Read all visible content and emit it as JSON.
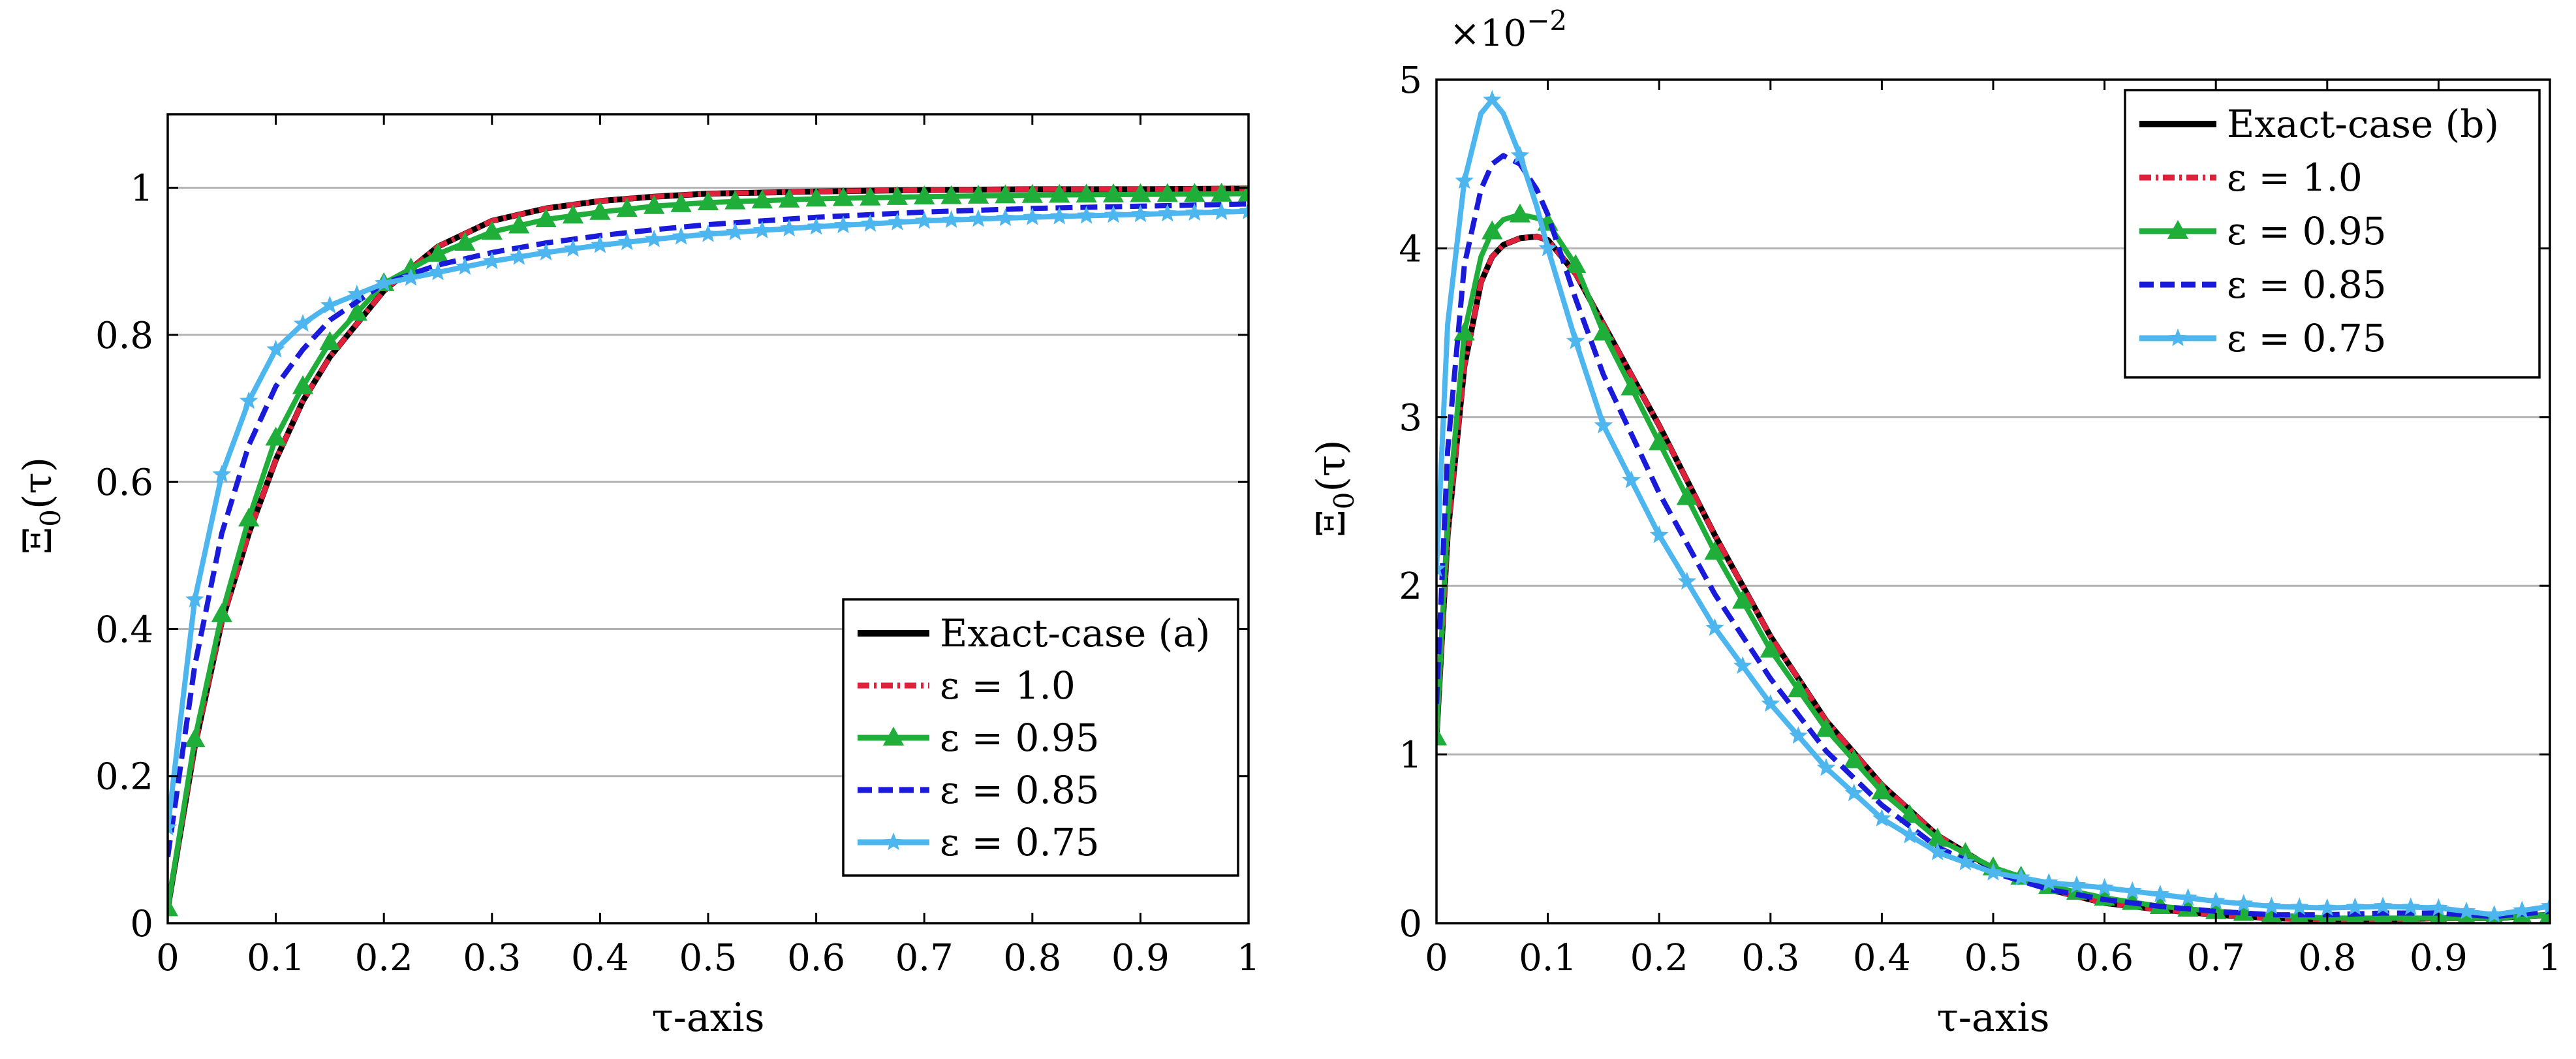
{
  "chart_data": [
    {
      "id": "a",
      "type": "line",
      "xlabel": "τ-axis",
      "ylabel": "Ξ0(τ)",
      "ylabel_main": "Ξ",
      "ylabel_sub": "0",
      "ylabel_tail": "(τ)",
      "xlim": [
        0,
        1
      ],
      "ylim": [
        0,
        1.1
      ],
      "xticks": [
        0,
        0.1,
        0.2,
        0.3,
        0.4,
        0.5,
        0.6,
        0.7,
        0.8,
        0.9,
        1
      ],
      "xtick_labels": [
        "0",
        "0.1",
        "0.2",
        "0.3",
        "0.4",
        "0.5",
        "0.6",
        "0.7",
        "0.8",
        "0.9",
        "1"
      ],
      "yticks": [
        0,
        0.2,
        0.4,
        0.6,
        0.8,
        1
      ],
      "ytick_labels": [
        "0",
        "0.2",
        "0.4",
        "0.6",
        "0.8",
        "1"
      ],
      "grid": "horizontal",
      "legend_position": "bottom-right",
      "x": [
        0,
        0.025,
        0.05,
        0.075,
        0.1,
        0.125,
        0.15,
        0.2,
        0.25,
        0.3,
        0.35,
        0.4,
        0.45,
        0.5,
        0.6,
        0.7,
        0.8,
        0.9,
        1.0
      ],
      "series": [
        {
          "name": "Exact-case (a)",
          "color": "#000000",
          "style": "solid",
          "marker": "none",
          "values": [
            0.02,
            0.24,
            0.41,
            0.53,
            0.63,
            0.71,
            0.77,
            0.86,
            0.92,
            0.955,
            0.972,
            0.982,
            0.988,
            0.992,
            0.995,
            0.997,
            0.998,
            0.998,
            0.999
          ]
        },
        {
          "name": "ε = 1.0",
          "color": "#e0213b",
          "style": "dashdot",
          "marker": "none",
          "values": [
            0.02,
            0.24,
            0.41,
            0.53,
            0.63,
            0.71,
            0.77,
            0.86,
            0.92,
            0.955,
            0.972,
            0.982,
            0.988,
            0.992,
            0.995,
            0.997,
            0.998,
            0.998,
            0.999
          ]
        },
        {
          "name": "ε = 0.95",
          "color": "#1fae3a",
          "style": "solid",
          "marker": "triangle",
          "values": [
            0.02,
            0.25,
            0.42,
            0.55,
            0.66,
            0.73,
            0.79,
            0.87,
            0.91,
            0.94,
            0.957,
            0.967,
            0.975,
            0.98,
            0.985,
            0.988,
            0.99,
            0.991,
            0.992
          ]
        },
        {
          "name": "ε = 0.85",
          "color": "#1a1adb",
          "style": "dashed",
          "marker": "none",
          "values": [
            0.09,
            0.35,
            0.53,
            0.65,
            0.73,
            0.78,
            0.82,
            0.87,
            0.895,
            0.912,
            0.925,
            0.935,
            0.943,
            0.95,
            0.96,
            0.967,
            0.972,
            0.975,
            0.978
          ]
        },
        {
          "name": "ε = 0.75",
          "color": "#4db6ee",
          "style": "solid",
          "marker": "star",
          "values": [
            0.13,
            0.44,
            0.61,
            0.71,
            0.78,
            0.815,
            0.84,
            0.87,
            0.885,
            0.9,
            0.912,
            0.922,
            0.93,
            0.937,
            0.947,
            0.955,
            0.96,
            0.964,
            0.968
          ]
        }
      ]
    },
    {
      "id": "b",
      "type": "line",
      "xlabel": "τ-axis",
      "ylabel": "Ξ0(τ)",
      "ylabel_main": "Ξ",
      "ylabel_sub": "0",
      "ylabel_tail": "(τ)",
      "scale_base": "×10",
      "scale_exp": "−2",
      "xlim": [
        0,
        1
      ],
      "ylim": [
        0,
        5
      ],
      "xticks": [
        0,
        0.1,
        0.2,
        0.3,
        0.4,
        0.5,
        0.6,
        0.7,
        0.8,
        0.9,
        1
      ],
      "xtick_labels": [
        "0",
        "0.1",
        "0.2",
        "0.3",
        "0.4",
        "0.5",
        "0.6",
        "0.7",
        "0.8",
        "0.9",
        "1"
      ],
      "yticks": [
        0,
        1,
        2,
        3,
        4,
        5
      ],
      "ytick_labels": [
        "0",
        "1",
        "2",
        "3",
        "4",
        "5"
      ],
      "grid": "horizontal",
      "legend_position": "top-right",
      "x": [
        0,
        0.01,
        0.025,
        0.04,
        0.05,
        0.06,
        0.075,
        0.09,
        0.1,
        0.125,
        0.15,
        0.2,
        0.25,
        0.3,
        0.35,
        0.4,
        0.45,
        0.5,
        0.55,
        0.6,
        0.65,
        0.7,
        0.75,
        0.8,
        0.85,
        0.9,
        0.95,
        1.0
      ],
      "series": [
        {
          "name": "Exact-case (b)",
          "color": "#000000",
          "style": "solid",
          "marker": "none",
          "values": [
            1.1,
            2.3,
            3.3,
            3.8,
            3.95,
            4.02,
            4.06,
            4.07,
            4.05,
            3.85,
            3.55,
            2.95,
            2.3,
            1.7,
            1.2,
            0.82,
            0.52,
            0.32,
            0.2,
            0.12,
            0.08,
            0.05,
            0.03,
            0.02,
            0.02,
            0.03,
            0.03,
            0.05
          ]
        },
        {
          "name": "ε = 1.0",
          "color": "#e0213b",
          "style": "dashdot",
          "marker": "none",
          "values": [
            1.1,
            2.3,
            3.3,
            3.8,
            3.95,
            4.02,
            4.06,
            4.07,
            4.05,
            3.85,
            3.55,
            2.95,
            2.3,
            1.7,
            1.2,
            0.82,
            0.52,
            0.32,
            0.2,
            0.12,
            0.08,
            0.05,
            0.03,
            0.02,
            0.02,
            0.03,
            0.03,
            0.05
          ]
        },
        {
          "name": "ε = 0.95",
          "color": "#1fae3a",
          "style": "solid",
          "marker": "triangle",
          "values": [
            1.1,
            2.4,
            3.5,
            3.95,
            4.1,
            4.17,
            4.2,
            4.18,
            4.15,
            3.9,
            3.5,
            2.85,
            2.2,
            1.62,
            1.15,
            0.78,
            0.5,
            0.33,
            0.22,
            0.15,
            0.1,
            0.07,
            0.05,
            0.03,
            0.03,
            0.03,
            0.03,
            0.05
          ]
        },
        {
          "name": "ε = 0.85",
          "color": "#1a1adb",
          "style": "dashed",
          "marker": "none",
          "values": [
            1.3,
            2.8,
            3.9,
            4.35,
            4.5,
            4.55,
            4.5,
            4.35,
            4.2,
            3.7,
            3.25,
            2.55,
            1.95,
            1.45,
            1.02,
            0.7,
            0.45,
            0.3,
            0.2,
            0.14,
            0.1,
            0.07,
            0.05,
            0.05,
            0.06,
            0.06,
            0.04,
            0.07
          ]
        },
        {
          "name": "ε = 0.75",
          "color": "#4db6ee",
          "style": "solid",
          "marker": "star",
          "values": [
            2.1,
            3.55,
            4.4,
            4.8,
            4.88,
            4.8,
            4.55,
            4.25,
            4.0,
            3.45,
            2.95,
            2.3,
            1.75,
            1.3,
            0.92,
            0.62,
            0.42,
            0.3,
            0.24,
            0.21,
            0.17,
            0.13,
            0.1,
            0.09,
            0.1,
            0.09,
            0.05,
            0.1
          ]
        }
      ]
    }
  ]
}
